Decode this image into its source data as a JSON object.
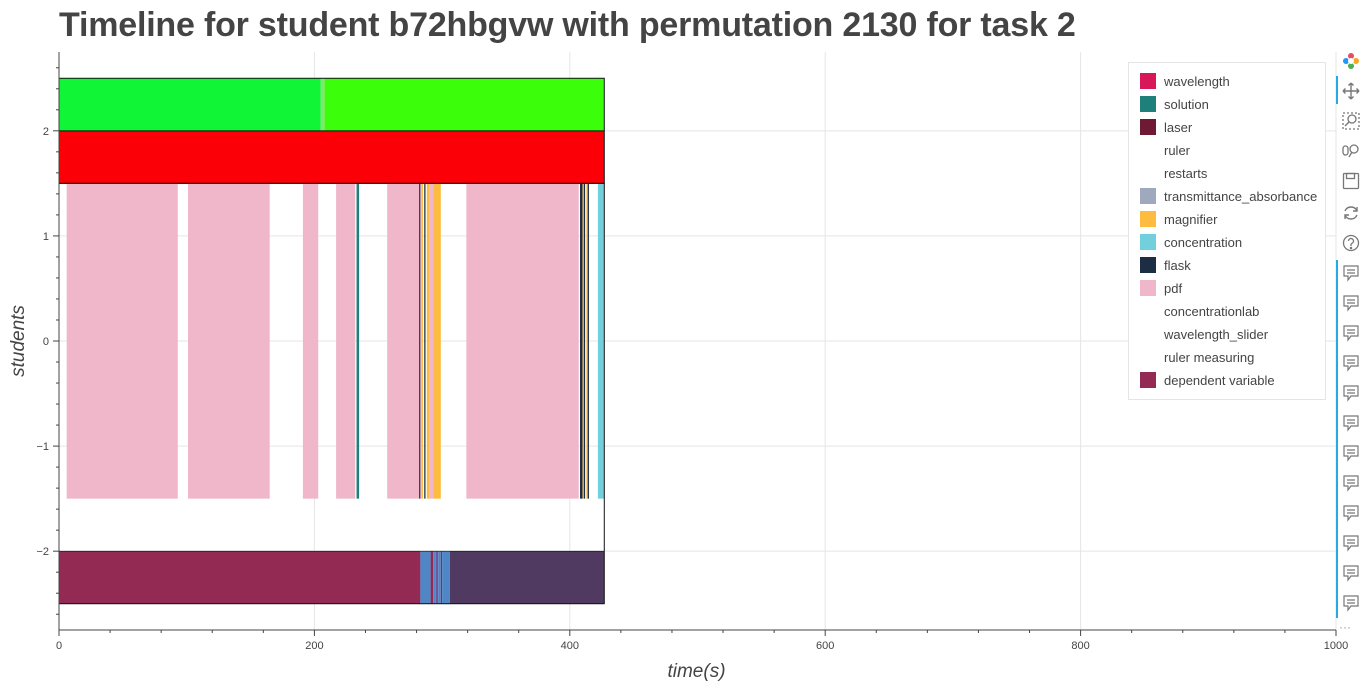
{
  "title": "Timeline for student b72hbgvw with permutation 2130 for task 2",
  "chart_data": {
    "type": "timeline",
    "title": "Timeline for student b72hbgvw with permutation 2130 for task 2",
    "xlabel": "time(s)",
    "ylabel": "students",
    "xlim": [
      0,
      1000
    ],
    "ylim": [
      -2.75,
      2.75
    ],
    "xticks": [
      0,
      200,
      400,
      600,
      800,
      1000
    ],
    "xtick_labels": [
      "0",
      "200",
      "400",
      "600",
      "800",
      "1000"
    ],
    "yticks": [
      -2,
      -1,
      0,
      1,
      2
    ],
    "ytick_labels": [
      "−2",
      "−1",
      "0",
      "1",
      "2"
    ],
    "grid": true,
    "legend_position": "top-right",
    "legend": [
      {
        "label": "wavelength",
        "color": "#d6185a"
      },
      {
        "label": "solution",
        "color": "#1f7f7a"
      },
      {
        "label": "laser",
        "color": "#6e1a34"
      },
      {
        "label": "ruler",
        "color": null
      },
      {
        "label": "restarts",
        "color": null
      },
      {
        "label": "transmittance_absorbance",
        "color": "#9fa9bd"
      },
      {
        "label": "magnifier",
        "color": "#fdbc40"
      },
      {
        "label": "concentration",
        "color": "#72d0dc"
      },
      {
        "label": "flask",
        "color": "#1c2d44"
      },
      {
        "label": "pdf",
        "color": "#efb7c9"
      },
      {
        "label": "concentrationlab",
        "color": null
      },
      {
        "label": "wavelength_slider",
        "color": null
      },
      {
        "label": "ruler measuring",
        "color": null
      },
      {
        "label": "dependent variable",
        "color": "#922a53"
      }
    ],
    "bands": [
      {
        "lane": "green",
        "y0": 2.0,
        "y1": 2.5,
        "segments": [
          {
            "x0": 0,
            "x1": 205,
            "color": "#10f535"
          },
          {
            "x0": 205,
            "x1": 208,
            "color": "#7fe86a"
          },
          {
            "x0": 208,
            "x1": 427,
            "color": "#3bff0a"
          }
        ]
      },
      {
        "lane": "red",
        "y0": 1.5,
        "y1": 2.0,
        "segments": [
          {
            "x0": 0,
            "x1": 427,
            "color": "#fb0006"
          }
        ]
      },
      {
        "lane": "actions",
        "y0": -1.5,
        "y1": 1.5,
        "segments": [
          {
            "x0": 6,
            "x1": 93,
            "color": "#efb7c9"
          },
          {
            "x0": 101,
            "x1": 165,
            "color": "#efb7c9"
          },
          {
            "x0": 191,
            "x1": 203,
            "color": "#efb7c9"
          },
          {
            "x0": 217,
            "x1": 232,
            "color": "#efb7c9"
          },
          {
            "x0": 233,
            "x1": 235,
            "color": "#1f7f7a"
          },
          {
            "x0": 257,
            "x1": 282,
            "color": "#efb7c9"
          },
          {
            "x0": 282,
            "x1": 283,
            "color": "#1c2d44"
          },
          {
            "x0": 283,
            "x1": 284,
            "color": "#efb7c9"
          },
          {
            "x0": 284,
            "x1": 285,
            "color": "#fdbc40"
          },
          {
            "x0": 286,
            "x1": 287,
            "color": "#1c2d44"
          },
          {
            "x0": 288,
            "x1": 290,
            "color": "#fdbc40"
          },
          {
            "x0": 290,
            "x1": 293,
            "color": "#efb7c9"
          },
          {
            "x0": 293,
            "x1": 299,
            "color": "#fdbc40"
          },
          {
            "x0": 319,
            "x1": 407,
            "color": "#efb7c9"
          },
          {
            "x0": 408,
            "x1": 410,
            "color": "#1c2d44"
          },
          {
            "x0": 410,
            "x1": 411,
            "color": "#fdbc40"
          },
          {
            "x0": 411,
            "x1": 412,
            "color": "#1c2d44"
          },
          {
            "x0": 413,
            "x1": 414,
            "color": "#fdbc40"
          },
          {
            "x0": 414,
            "x1": 415,
            "color": "#1c2d44"
          },
          {
            "x0": 422,
            "x1": 427,
            "color": "#72d0dc"
          }
        ]
      },
      {
        "lane": "dependent",
        "y0": -2.5,
        "y1": -2.0,
        "segments": [
          {
            "x0": 0,
            "x1": 283,
            "color": "#922a53"
          },
          {
            "x0": 283,
            "x1": 291,
            "color": "#4f86c6"
          },
          {
            "x0": 291,
            "x1": 293,
            "color": "#922a53"
          },
          {
            "x0": 293,
            "x1": 295,
            "color": "#4f86c6"
          },
          {
            "x0": 295,
            "x1": 297,
            "color": "#6b5a9e"
          },
          {
            "x0": 297,
            "x1": 299,
            "color": "#4f86c6"
          },
          {
            "x0": 299,
            "x1": 300,
            "color": "#922a53"
          },
          {
            "x0": 300,
            "x1": 306,
            "color": "#4f86c6"
          },
          {
            "x0": 306,
            "x1": 427,
            "color": "#503a62"
          }
        ]
      }
    ],
    "frames": [
      {
        "x0": 0,
        "x1": 427,
        "y0": 1.5,
        "y1": 2.5
      },
      {
        "x0": 0,
        "x1": 427,
        "y0": -2.5,
        "y1": 1.5
      }
    ]
  },
  "toolbar": {
    "tools": [
      {
        "name": "bokeh-logo-icon"
      },
      {
        "name": "pan-icon"
      },
      {
        "name": "box-zoom-icon"
      },
      {
        "name": "wheel-zoom-icon"
      },
      {
        "name": "save-icon"
      },
      {
        "name": "reset-icon"
      },
      {
        "name": "help-icon"
      },
      {
        "name": "hover-icon"
      },
      {
        "name": "hover-icon"
      },
      {
        "name": "hover-icon"
      },
      {
        "name": "hover-icon"
      },
      {
        "name": "hover-icon"
      },
      {
        "name": "hover-icon"
      },
      {
        "name": "hover-icon"
      },
      {
        "name": "hover-icon"
      },
      {
        "name": "hover-icon"
      },
      {
        "name": "hover-icon"
      },
      {
        "name": "hover-icon"
      },
      {
        "name": "hover-icon"
      }
    ],
    "more_label": "···"
  }
}
